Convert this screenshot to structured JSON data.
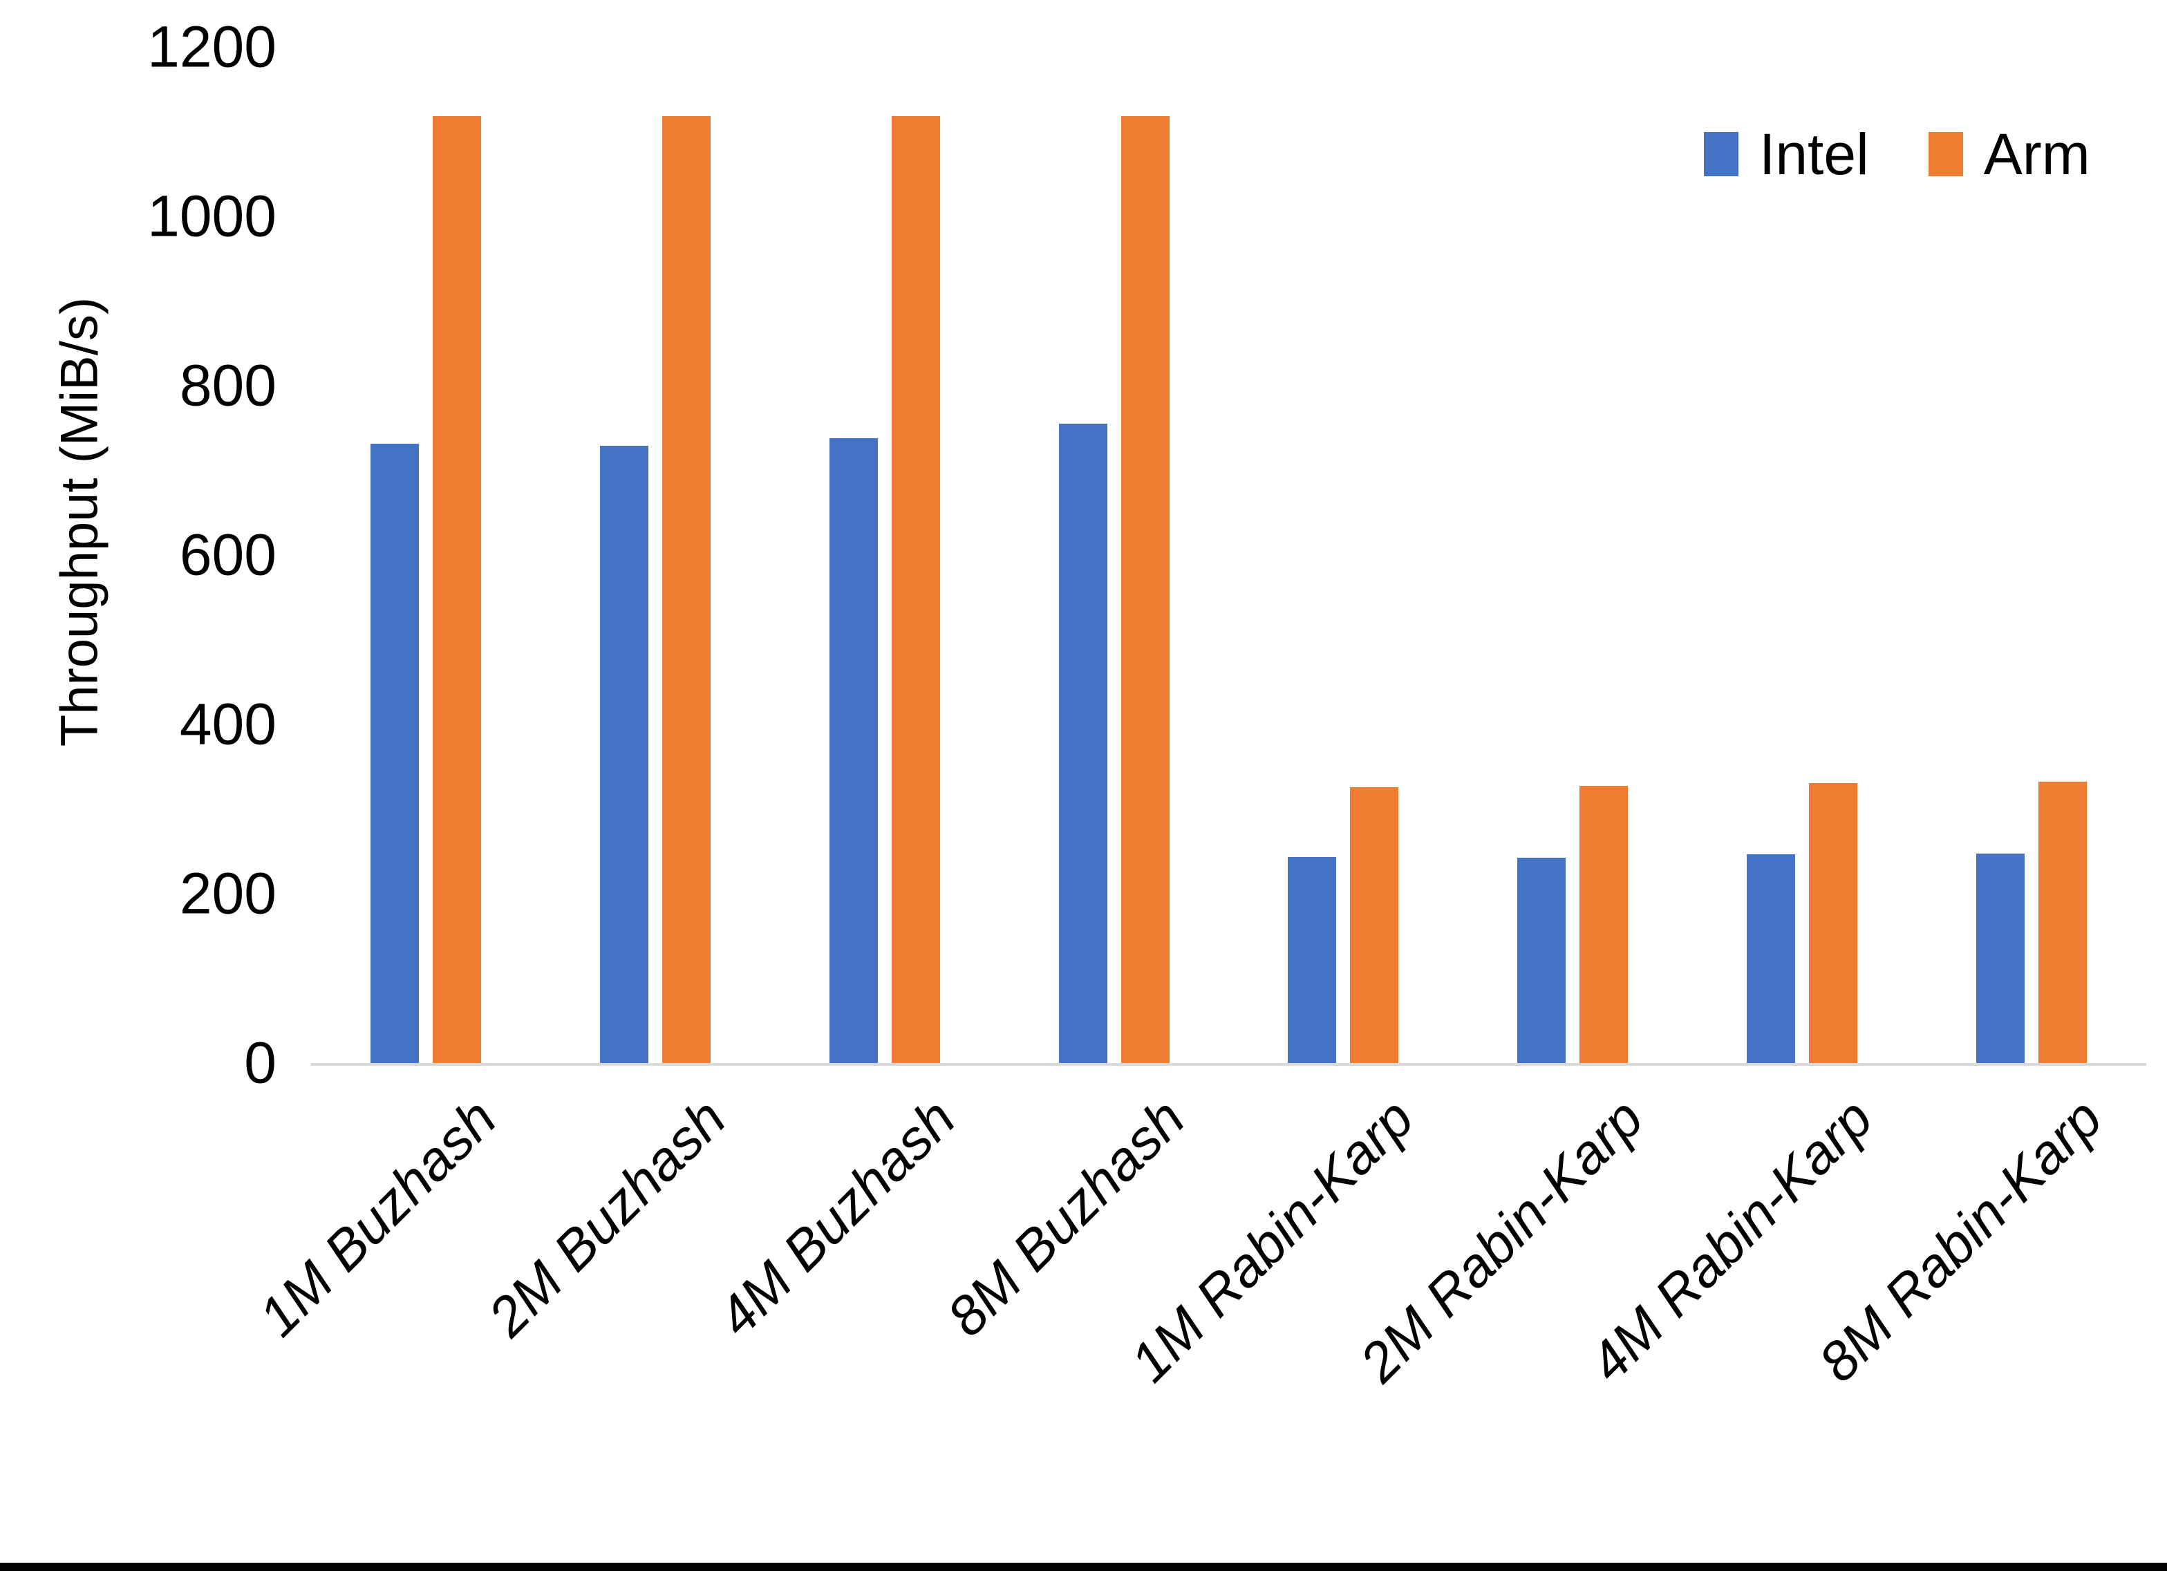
{
  "figure": {
    "background": "#ffffff",
    "bottom_border_color": "#000000"
  },
  "chart_data": {
    "type": "bar",
    "title": "",
    "xlabel": "",
    "ylabel": "Throughput (MiB/s)",
    "ylim": [
      0,
      1200
    ],
    "ytick_step": 200,
    "yticks": [
      0,
      200,
      400,
      600,
      800,
      1000,
      1200
    ],
    "grid": false,
    "legend_position": "top-right",
    "axis_line_color": "#D9D9D9",
    "text_color": "#000000",
    "categories": [
      "1M Buzhash",
      "2M Buzhash",
      "4M Buzhash",
      "8M Buzhash",
      "1M Rabin-Karp",
      "2M Rabin-Karp",
      "4M Rabin-Karp",
      "8M Rabin-Karp"
    ],
    "series": [
      {
        "name": "Intel",
        "color": "#4472C4",
        "values": [
          733,
          731,
          740,
          757,
          245,
          244,
          248,
          249
        ]
      },
      {
        "name": "Arm",
        "color": "#ED7D31",
        "values": [
          1120,
          1120,
          1120,
          1120,
          327,
          329,
          332,
          334
        ]
      }
    ]
  }
}
